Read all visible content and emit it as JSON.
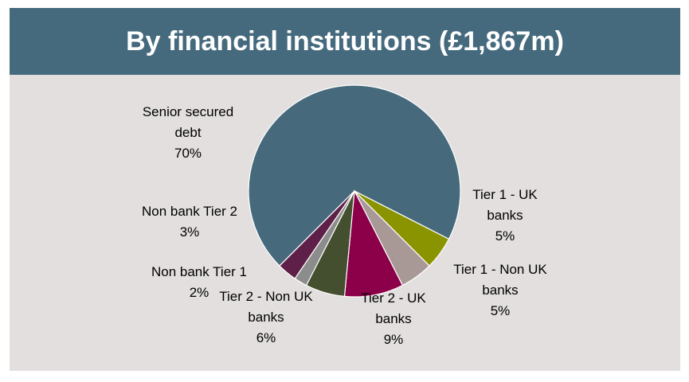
{
  "chart_data": {
    "type": "pie",
    "title": "By financial institutions (£1,867m)",
    "slices": [
      {
        "name": "Senior secured debt",
        "value": 70,
        "label_lines": [
          "Senior secured",
          "debt",
          "70%"
        ],
        "color": "#466a7c"
      },
      {
        "name": "Tier 1 - UK banks",
        "value": 5,
        "label_lines": [
          "Tier 1 - UK",
          "banks",
          "5%"
        ],
        "color": "#8a9400"
      },
      {
        "name": "Tier 1 - Non UK banks",
        "value": 5,
        "label_lines": [
          "Tier 1 - Non UK",
          "banks",
          "5%"
        ],
        "color": "#a89896"
      },
      {
        "name": "Tier 2 - UK banks",
        "value": 9,
        "label_lines": [
          "Tier 2 - UK",
          "banks",
          "9%"
        ],
        "color": "#8b0049"
      },
      {
        "name": "Tier 2 - Non UK banks",
        "value": 6,
        "label_lines": [
          "Tier 2 - Non UK",
          "banks",
          "6%"
        ],
        "color": "#444f2f"
      },
      {
        "name": "Non bank Tier 1",
        "value": 2,
        "label_lines": [
          "Non bank Tier 1",
          "2%"
        ],
        "color": "#8c8c8c"
      },
      {
        "name": "Non bank Tier 2",
        "value": 3,
        "label_lines": [
          "Non bank Tier 2",
          "3%"
        ],
        "color": "#5e1f48"
      }
    ]
  }
}
